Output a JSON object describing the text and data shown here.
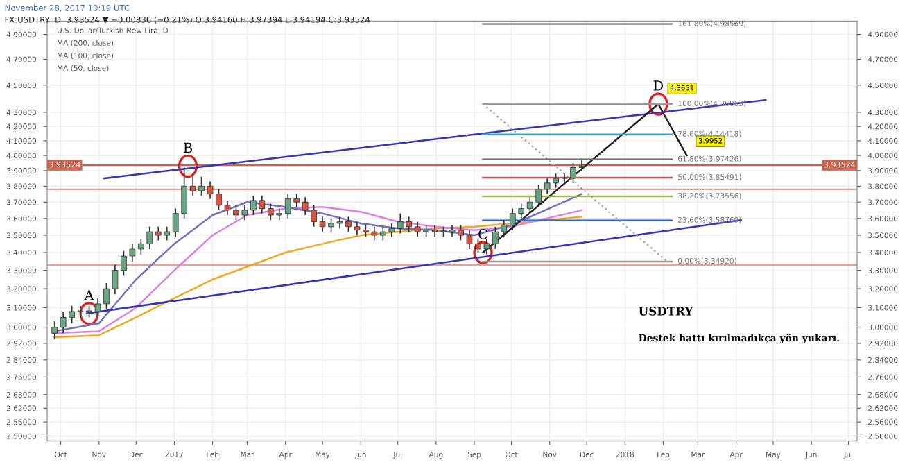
{
  "chart_data": {
    "type": "candlestick",
    "x": [
      "2016-09-26",
      "2016-10-03",
      "2016-10-10",
      "2016-10-17",
      "2016-10-24",
      "2016-10-31",
      "2016-11-07",
      "2016-11-14",
      "2016-11-21",
      "2016-11-28",
      "2016-12-05",
      "2016-12-12",
      "2016-12-19",
      "2016-12-26",
      "2017-01-02",
      "2017-01-09",
      "2017-01-16",
      "2017-01-23",
      "2017-01-30",
      "2017-02-06",
      "2017-02-13",
      "2017-02-20",
      "2017-02-27",
      "2017-03-06",
      "2017-03-13",
      "2017-03-20",
      "2017-03-27",
      "2017-04-03",
      "2017-04-10",
      "2017-04-17",
      "2017-04-24",
      "2017-05-01",
      "2017-05-08",
      "2017-05-15",
      "2017-05-22",
      "2017-05-29",
      "2017-06-05",
      "2017-06-12",
      "2017-06-19",
      "2017-06-26",
      "2017-07-03",
      "2017-07-10",
      "2017-07-17",
      "2017-07-24",
      "2017-07-31",
      "2017-08-07",
      "2017-08-14",
      "2017-08-21",
      "2017-08-28",
      "2017-09-04",
      "2017-09-11",
      "2017-09-18",
      "2017-09-25",
      "2017-10-02",
      "2017-10-09",
      "2017-10-16",
      "2017-10-23",
      "2017-10-30",
      "2017-11-06",
      "2017-11-13",
      "2017-11-20",
      "2017-11-27"
    ],
    "ohlc": [
      [
        2.97,
        3.03,
        2.94,
        3.0
      ],
      [
        3.0,
        3.08,
        2.97,
        3.05
      ],
      [
        3.05,
        3.11,
        3.02,
        3.08
      ],
      [
        3.08,
        3.11,
        3.05,
        3.08
      ],
      [
        3.08,
        3.11,
        3.05,
        3.08
      ],
      [
        3.08,
        3.15,
        3.05,
        3.12
      ],
      [
        3.12,
        3.23,
        3.09,
        3.2
      ],
      [
        3.2,
        3.33,
        3.17,
        3.3
      ],
      [
        3.3,
        3.41,
        3.27,
        3.38
      ],
      [
        3.38,
        3.45,
        3.35,
        3.42
      ],
      [
        3.42,
        3.48,
        3.39,
        3.45
      ],
      [
        3.45,
        3.55,
        3.42,
        3.52
      ],
      [
        3.52,
        3.55,
        3.47,
        3.5
      ],
      [
        3.5,
        3.55,
        3.47,
        3.52
      ],
      [
        3.52,
        3.66,
        3.49,
        3.63
      ],
      [
        3.63,
        3.92,
        3.6,
        3.8
      ],
      [
        3.8,
        3.88,
        3.74,
        3.77
      ],
      [
        3.77,
        3.86,
        3.74,
        3.8
      ],
      [
        3.8,
        3.83,
        3.72,
        3.75
      ],
      [
        3.75,
        3.78,
        3.65,
        3.68
      ],
      [
        3.68,
        3.71,
        3.62,
        3.65
      ],
      [
        3.65,
        3.68,
        3.59,
        3.62
      ],
      [
        3.62,
        3.68,
        3.59,
        3.65
      ],
      [
        3.65,
        3.74,
        3.62,
        3.71
      ],
      [
        3.71,
        3.74,
        3.63,
        3.66
      ],
      [
        3.66,
        3.69,
        3.59,
        3.62
      ],
      [
        3.62,
        3.66,
        3.59,
        3.63
      ],
      [
        3.63,
        3.75,
        3.6,
        3.72
      ],
      [
        3.72,
        3.75,
        3.67,
        3.7
      ],
      [
        3.7,
        3.73,
        3.62,
        3.65
      ],
      [
        3.65,
        3.68,
        3.55,
        3.58
      ],
      [
        3.58,
        3.61,
        3.52,
        3.55
      ],
      [
        3.55,
        3.6,
        3.52,
        3.57
      ],
      [
        3.57,
        3.61,
        3.54,
        3.58
      ],
      [
        3.58,
        3.61,
        3.52,
        3.55
      ],
      [
        3.55,
        3.58,
        3.5,
        3.53
      ],
      [
        3.53,
        3.56,
        3.49,
        3.52
      ],
      [
        3.52,
        3.55,
        3.47,
        3.5
      ],
      [
        3.5,
        3.55,
        3.47,
        3.52
      ],
      [
        3.52,
        3.57,
        3.49,
        3.54
      ],
      [
        3.54,
        3.63,
        3.51,
        3.58
      ],
      [
        3.58,
        3.61,
        3.52,
        3.55
      ],
      [
        3.55,
        3.58,
        3.49,
        3.52
      ],
      [
        3.52,
        3.56,
        3.49,
        3.53
      ],
      [
        3.53,
        3.56,
        3.49,
        3.52
      ],
      [
        3.52,
        3.55,
        3.49,
        3.52
      ],
      [
        3.52,
        3.56,
        3.49,
        3.53
      ],
      [
        3.53,
        3.56,
        3.47,
        3.5
      ],
      [
        3.5,
        3.53,
        3.42,
        3.45
      ],
      [
        3.45,
        3.48,
        3.4,
        3.42
      ],
      [
        3.42,
        3.48,
        3.39,
        3.45
      ],
      [
        3.45,
        3.55,
        3.42,
        3.52
      ],
      [
        3.52,
        3.59,
        3.49,
        3.56
      ],
      [
        3.56,
        3.66,
        3.53,
        3.63
      ],
      [
        3.63,
        3.69,
        3.6,
        3.66
      ],
      [
        3.66,
        3.73,
        3.63,
        3.7
      ],
      [
        3.7,
        3.81,
        3.67,
        3.78
      ],
      [
        3.78,
        3.85,
        3.75,
        3.82
      ],
      [
        3.82,
        3.88,
        3.79,
        3.85
      ],
      [
        3.85,
        3.88,
        3.82,
        3.85
      ],
      [
        3.85,
        3.95,
        3.82,
        3.92
      ],
      [
        3.92,
        3.97,
        3.9,
        3.93
      ]
    ],
    "series": [
      {
        "type": "line",
        "color": "#f5a623",
        "x": [
          "2016-09-26",
          "2016-11-01",
          "2016-12-01",
          "2017-01-01",
          "2017-02-01",
          "2017-03-01",
          "2017-04-01",
          "2017-05-01",
          "2017-06-01",
          "2017-07-01",
          "2017-08-01",
          "2017-09-01",
          "2017-10-01",
          "2017-11-27"
        ],
        "values": [
          2.95,
          2.96,
          3.05,
          3.15,
          3.25,
          3.32,
          3.4,
          3.45,
          3.5,
          3.52,
          3.54,
          3.55,
          3.57,
          3.61
        ]
      },
      {
        "type": "line",
        "color": "#e080e0",
        "x": [
          "2016-09-26",
          "2016-11-01",
          "2016-12-01",
          "2017-01-01",
          "2017-02-01",
          "2017-03-01",
          "2017-04-01",
          "2017-05-01",
          "2017-06-01",
          "2017-07-01",
          "2017-08-01",
          "2017-09-01",
          "2017-10-01",
          "2017-11-27"
        ],
        "values": [
          2.97,
          2.98,
          3.1,
          3.3,
          3.5,
          3.62,
          3.66,
          3.67,
          3.64,
          3.58,
          3.55,
          3.53,
          3.55,
          3.65
        ]
      },
      {
        "type": "line",
        "color": "#7070c0",
        "x": [
          "2016-09-26",
          "2016-11-01",
          "2016-12-01",
          "2017-01-01",
          "2017-02-01",
          "2017-03-01",
          "2017-04-01",
          "2017-05-01",
          "2017-06-01",
          "2017-07-01",
          "2017-08-01",
          "2017-09-01",
          "2017-10-01",
          "2017-11-27"
        ],
        "values": [
          2.98,
          3.02,
          3.25,
          3.45,
          3.62,
          3.7,
          3.67,
          3.63,
          3.57,
          3.54,
          3.53,
          3.5,
          3.56,
          3.75
        ]
      },
      {
        "type": "line",
        "color": "#3333bb",
        "x": [
          "2016-11-05",
          "2018-04-25"
        ],
        "values": [
          3.85,
          4.39
        ]
      },
      {
        "type": "line",
        "color": "#3333bb",
        "x": [
          "2016-10-22",
          "2018-04-05"
        ],
        "values": [
          3.07,
          3.59
        ]
      },
      {
        "type": "line",
        "color": "#222222",
        "x": [
          "2017-09-08",
          "2018-01-28",
          "2018-02-20"
        ],
        "values": [
          3.4,
          4.36,
          4.0
        ]
      },
      {
        "type": "line",
        "color": "#aaaaaa",
        "line_style": "dotted",
        "x": [
          "2017-09-08",
          "2018-02-04"
        ],
        "values": [
          4.36,
          3.35
        ]
      },
      {
        "type": "line",
        "color": "#888888",
        "x": [
          "2017-09-08",
          "2018-02-08"
        ],
        "values": [
          4.98569,
          4.98569
        ]
      },
      {
        "type": "line",
        "color": "#999999",
        "x": [
          "2017-09-08",
          "2018-02-08"
        ],
        "values": [
          4.36063,
          4.36063
        ]
      },
      {
        "type": "line",
        "color": "#4aa0c8",
        "x": [
          "2017-09-08",
          "2018-02-08"
        ],
        "values": [
          4.14418,
          4.14418
        ]
      },
      {
        "type": "line",
        "color": "#666666",
        "x": [
          "2017-09-08",
          "2018-02-08"
        ],
        "values": [
          3.97426,
          3.97426
        ]
      },
      {
        "type": "line",
        "color": "#d05050",
        "x": [
          "2017-09-08",
          "2018-02-08"
        ],
        "values": [
          3.85491,
          3.85491
        ]
      },
      {
        "type": "line",
        "color": "#9bbb40",
        "x": [
          "2017-09-08",
          "2018-02-08"
        ],
        "values": [
          3.73556,
          3.73556
        ]
      },
      {
        "type": "line",
        "color": "#3060c0",
        "x": [
          "2017-09-08",
          "2018-02-08"
        ],
        "values": [
          3.58769,
          3.58769
        ]
      },
      {
        "type": "line",
        "color": "#999999",
        "x": [
          "2017-09-08",
          "2018-02-08"
        ],
        "values": [
          3.3492,
          3.3492
        ]
      }
    ],
    "ref_lines": [
      {
        "axis": "y",
        "value": 3.93524,
        "label": "3.93524",
        "color": "#d0604a"
      },
      {
        "axis": "y",
        "value": 3.78,
        "color": "#e8a09a"
      },
      {
        "axis": "y",
        "value": 3.33,
        "color": "#e8a09a"
      }
    ],
    "annotations": [
      "November 28, 2017 10:19 UTC",
      "FX:USDTRY, D  3.93524 ▼ −0.00836 (−0.21%) O:3.94160 H:3.97394 L:3.94194 C:3.93524",
      "U.S. Dollar/Turkish New Lira, D",
      "MA (200, close)",
      "MA (100, close)",
      "MA (50, close)",
      "USDTRY",
      "Destek hattı kırılmadıkça yön yukarı.",
      {
        "text": "A",
        "x": "2016-10-24",
        "y": 3.07
      },
      {
        "text": "B",
        "x": "2017-01-12",
        "y": 3.93
      },
      {
        "text": "C",
        "x": "2017-09-08",
        "y": 3.4
      },
      {
        "text": "D",
        "x": "2018-01-28",
        "y": 4.36
      },
      {
        "text": "4.3651",
        "x": "2018-01-28",
        "y": 4.3651
      },
      {
        "text": "3.9952",
        "x": "2018-02-20",
        "y": 3.9952
      },
      {
        "text": "161.80%(4.98569)",
        "x": "2018-02-08",
        "y": 4.98569
      },
      {
        "text": "100.00%(4.36063)",
        "x": "2018-02-08",
        "y": 4.36063
      },
      {
        "text": "78.60%(4.14418)",
        "x": "2018-02-08",
        "y": 4.14418
      },
      {
        "text": "61.80%(3.97426)",
        "x": "2018-02-08",
        "y": 3.97426
      },
      {
        "text": "50.00%(3.85491)",
        "x": "2018-02-08",
        "y": 3.85491
      },
      {
        "text": "38.20%(3.73556)",
        "x": "2018-02-08",
        "y": 3.73556
      },
      {
        "text": "23.60%(3.58769)",
        "x": "2018-02-08",
        "y": 3.58769
      },
      {
        "text": "0.00%(3.34920)",
        "x": "2018-02-08",
        "y": 3.3492
      }
    ],
    "xlim": [
      "2016-09-20",
      "2018-07-08"
    ],
    "xticks": [
      {
        "value": "2016-10-01",
        "label": "Oct"
      },
      {
        "value": "2016-11-01",
        "label": "Nov"
      },
      {
        "value": "2016-12-01",
        "label": "Dec"
      },
      {
        "value": "2017-01-01",
        "label": "2017"
      },
      {
        "value": "2017-02-01",
        "label": "Feb"
      },
      {
        "value": "2017-03-01",
        "label": "Mar"
      },
      {
        "value": "2017-04-01",
        "label": "Apr"
      },
      {
        "value": "2017-05-01",
        "label": "May"
      },
      {
        "value": "2017-06-01",
        "label": "Jun"
      },
      {
        "value": "2017-07-01",
        "label": "Jul"
      },
      {
        "value": "2017-08-01",
        "label": "Aug"
      },
      {
        "value": "2017-09-01",
        "label": "Sep"
      },
      {
        "value": "2017-10-01",
        "label": "Oct"
      },
      {
        "value": "2017-11-01",
        "label": "Nov"
      },
      {
        "value": "2017-12-01",
        "label": "Dec"
      },
      {
        "value": "2018-01-01",
        "label": "2018"
      },
      {
        "value": "2018-02-01",
        "label": "Feb"
      },
      {
        "value": "2018-03-01",
        "label": "Mar"
      },
      {
        "value": "2018-04-01",
        "label": "Apr"
      },
      {
        "value": "2018-05-01",
        "label": "May"
      },
      {
        "value": "2018-06-01",
        "label": "Jun"
      },
      {
        "value": "2018-07-01",
        "label": "Jul"
      }
    ],
    "ylim": [
      2.48,
      5.01
    ],
    "yticks": [
      {
        "value": 4.9,
        "label": "4.90000"
      },
      {
        "value": 4.7,
        "label": "4.70000"
      },
      {
        "value": 4.5,
        "label": "4.50000"
      },
      {
        "value": 4.3,
        "label": "4.30000"
      },
      {
        "value": 4.2,
        "label": "4.20000"
      },
      {
        "value": 4.1,
        "label": "4.10000"
      },
      {
        "value": 4.0,
        "label": "4.00000"
      },
      {
        "value": 3.9,
        "label": "3.90000"
      },
      {
        "value": 3.8,
        "label": "3.80000"
      },
      {
        "value": 3.7,
        "label": "3.70000"
      },
      {
        "value": 3.6,
        "label": "3.60000"
      },
      {
        "value": 3.5,
        "label": "3.50000"
      },
      {
        "value": 3.4,
        "label": "3.40000"
      },
      {
        "value": 3.3,
        "label": "3.30000"
      },
      {
        "value": 3.2,
        "label": "3.20000"
      },
      {
        "value": 3.1,
        "label": "3.10000"
      },
      {
        "value": 3.0,
        "label": "3.00000"
      },
      {
        "value": 2.92,
        "label": "2.92000"
      },
      {
        "value": 2.84,
        "label": "2.84000"
      },
      {
        "value": 2.76,
        "label": "2.76000"
      },
      {
        "value": 2.68,
        "label": "2.68000"
      },
      {
        "value": 2.62,
        "label": "2.62000"
      },
      {
        "value": 2.56,
        "label": "2.56000"
      },
      {
        "value": 2.5,
        "label": "2.50000"
      }
    ],
    "log": "y",
    "grid": true
  }
}
